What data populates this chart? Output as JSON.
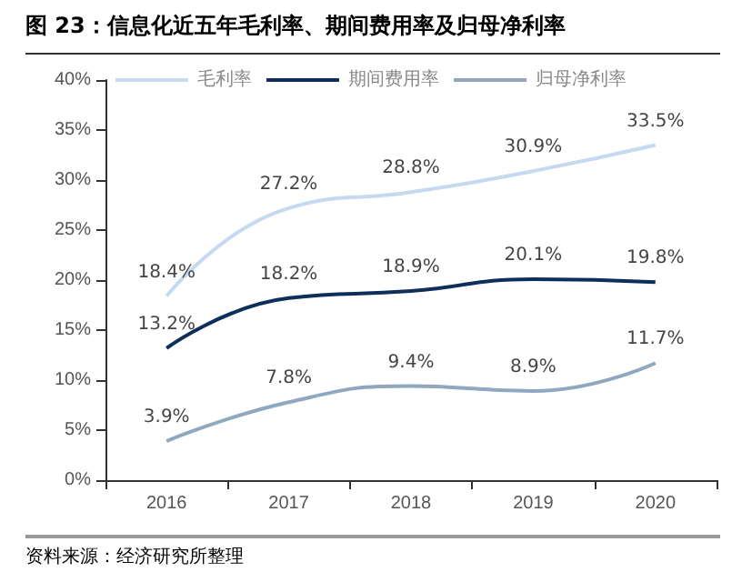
{
  "chart_data": {
    "type": "line",
    "title": "图 23：信息化近五年毛利率、期间费用率及归母净利率",
    "categories": [
      "2016",
      "2017",
      "2018",
      "2019",
      "2020"
    ],
    "series": [
      {
        "name": "毛利率",
        "color": "#c5d9f1",
        "values": [
          18.4,
          27.2,
          28.8,
          30.9,
          33.5
        ],
        "value_labels": [
          "18.4%",
          "27.2%",
          "28.8%",
          "30.9%",
          "33.5%"
        ]
      },
      {
        "name": "期间费用率",
        "color": "#0e2f5a",
        "values": [
          13.2,
          18.2,
          18.9,
          20.1,
          19.8
        ],
        "value_labels": [
          "13.2%",
          "18.2%",
          "18.9%",
          "20.1%",
          "19.8%"
        ]
      },
      {
        "name": "归母净利率",
        "color": "#8fa8c0",
        "values": [
          3.9,
          7.8,
          9.4,
          8.9,
          11.7
        ],
        "value_labels": [
          "3.9%",
          "7.8%",
          "9.4%",
          "8.9%",
          "11.7%"
        ]
      }
    ],
    "ylim": [
      0,
      40
    ],
    "yticks": [
      {
        "value": 0,
        "label": "0%"
      },
      {
        "value": 5,
        "label": "5%"
      },
      {
        "value": 10,
        "label": "10%"
      },
      {
        "value": 15,
        "label": "15%"
      },
      {
        "value": 20,
        "label": "20%"
      },
      {
        "value": 25,
        "label": "25%"
      },
      {
        "value": 30,
        "label": "30%"
      },
      {
        "value": 35,
        "label": "35%"
      },
      {
        "value": 40,
        "label": "40%"
      }
    ],
    "grid": false,
    "legend": "top",
    "marker": "none",
    "line_style": "solid",
    "annotations": [
      "资料来源：经济研究所整理"
    ]
  }
}
